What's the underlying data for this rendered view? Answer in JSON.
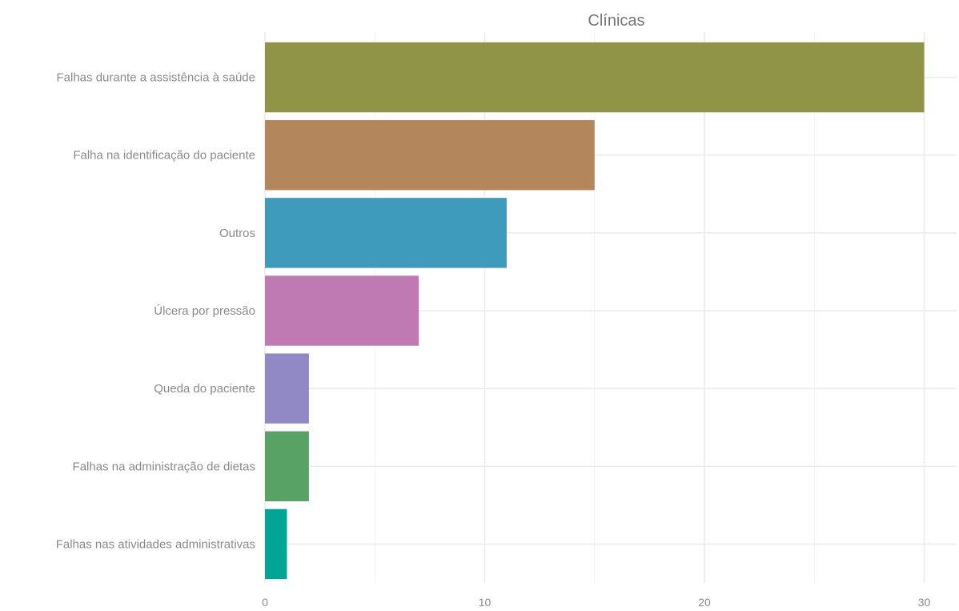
{
  "chart_data": {
    "type": "bar",
    "orientation": "horizontal",
    "title": "Clínicas",
    "xlabel": "",
    "ylabel": "",
    "categories": [
      "Falhas durante a assistência à saúde",
      "Falha na identificação do paciente",
      "Outros",
      "Úlcera por pressão",
      "Queda do paciente",
      "Falhas na administração de dietas",
      "Falhas nas atividades administrativas"
    ],
    "values": [
      30,
      15,
      11,
      7,
      2,
      2,
      1
    ],
    "colors": [
      "#8f9446",
      "#b3865b",
      "#3f9bbb",
      "#bf7ab4",
      "#9189c6",
      "#59a266",
      "#00a596"
    ],
    "xlim": [
      0,
      31
    ],
    "x_ticks": [
      0,
      10,
      20,
      30
    ],
    "x_tick_labels": [
      "0",
      "10",
      "20",
      "30"
    ],
    "grid": true,
    "legend": "none"
  }
}
